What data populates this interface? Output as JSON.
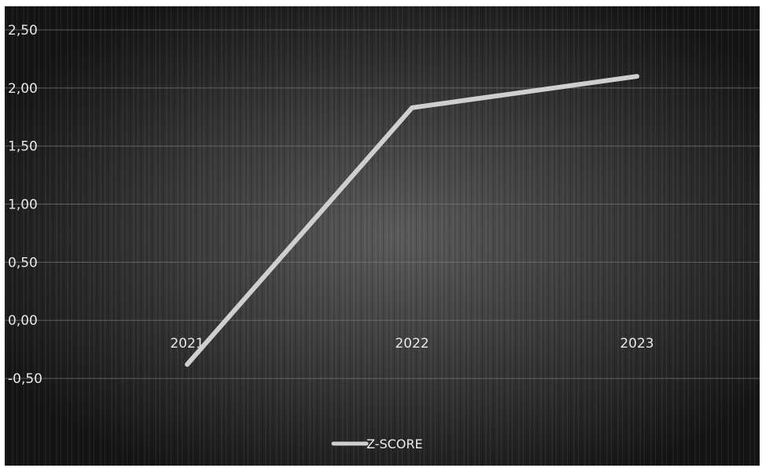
{
  "chart_data": {
    "type": "line",
    "categories": [
      "2021",
      "2022",
      "2023"
    ],
    "series": [
      {
        "name": "Z-SCORE",
        "values": [
          -0.38,
          1.83,
          2.1
        ],
        "color": "#cfcfcf"
      }
    ],
    "y_ticks": [
      "2,50",
      "2,00",
      "1,50",
      "1,00",
      "0,50",
      "0,00",
      "-0,50"
    ],
    "y_tick_values": [
      2.5,
      2.0,
      1.5,
      1.0,
      0.5,
      0.0,
      -0.5
    ],
    "ylim": [
      -0.75,
      2.5
    ],
    "grid": true,
    "legend_position": "bottom",
    "background_color": "#2a2a2a",
    "gridline_color": "#7a7a7a"
  }
}
